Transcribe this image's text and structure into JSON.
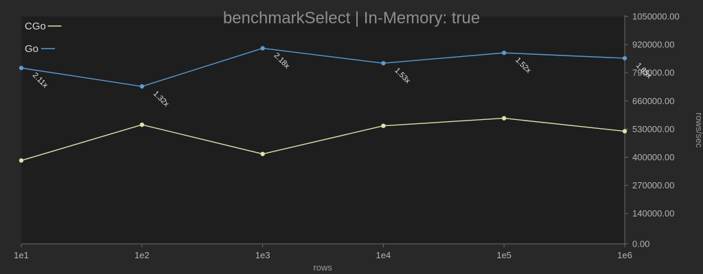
{
  "chart_data": {
    "type": "line",
    "title": "benchmarkSelect | In-Memory: true",
    "xlabel": "rows",
    "ylabel": "rows/sec",
    "x": [
      "1e1",
      "1e2",
      "1e3",
      "1e4",
      "1e5",
      "1e6"
    ],
    "yticks": [
      "0.00",
      "140000.00",
      "270000.00",
      "400000.00",
      "530000.00",
      "660000.00",
      "790000.00",
      "920000.00",
      "1050000.00"
    ],
    "ylim": [
      0,
      1050000
    ],
    "y_axis_side": "right",
    "legend_placement": "top-left",
    "grid": false,
    "series": [
      {
        "name": "CGo",
        "color": "#dfe3a8",
        "values": [
          385000,
          550000,
          415000,
          545000,
          580000,
          520000
        ]
      },
      {
        "name": "Go",
        "color": "#5b9bd5",
        "values": [
          812000,
          727000,
          903000,
          834000,
          882000,
          857000
        ],
        "ratio_labels": [
          "2.11x",
          "1.32x",
          "2.18x",
          "1.53x",
          "1.52x",
          "1.65x"
        ]
      }
    ]
  },
  "colors": {
    "background": "#282828",
    "plot_background": "#1e1e1e",
    "axis": "#6a6a6a"
  }
}
